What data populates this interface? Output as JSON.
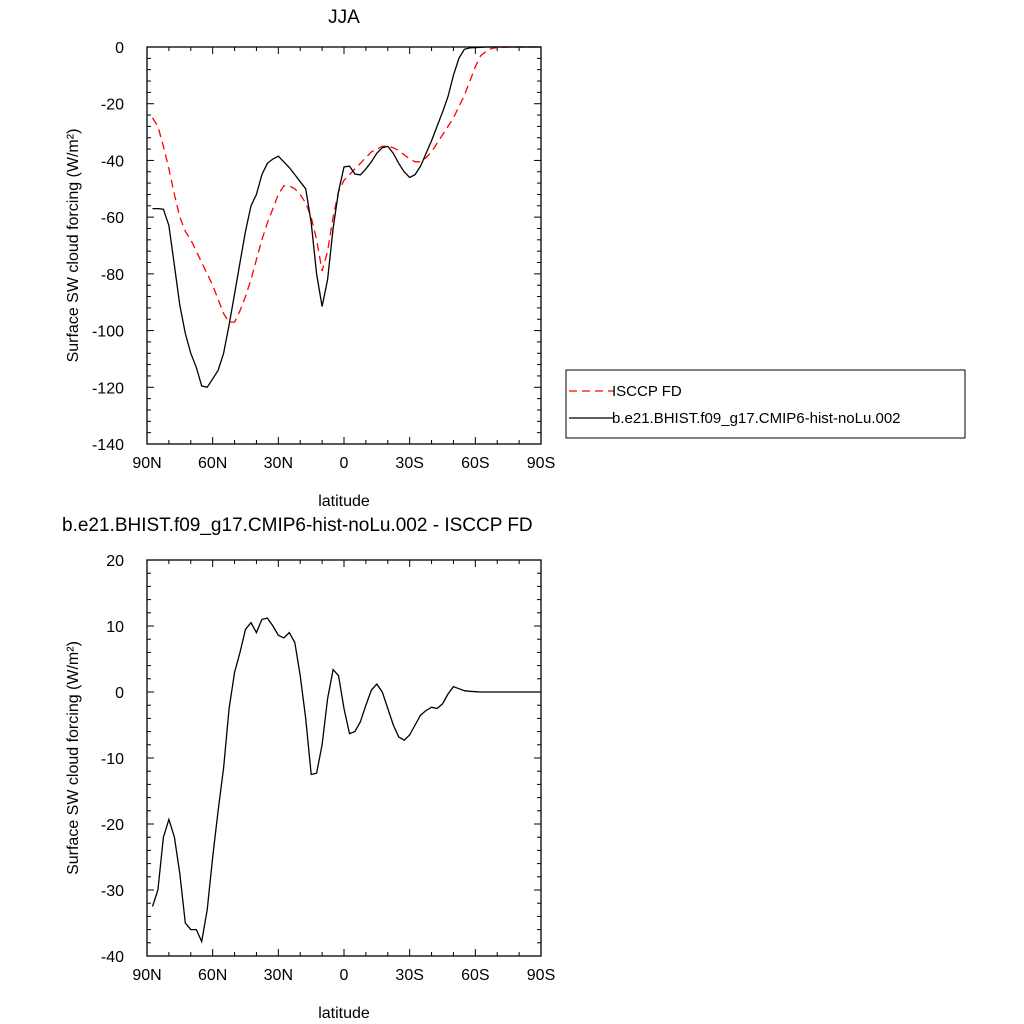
{
  "chart_data": [
    {
      "type": "line",
      "title": "JJA",
      "xlabel": "latitude",
      "ylabel": "Surface SW cloud forcing (W/m²)",
      "x_ticks": [
        {
          "value": -90,
          "label": "90N"
        },
        {
          "value": -60,
          "label": "60N"
        },
        {
          "value": -30,
          "label": "30N"
        },
        {
          "value": 0,
          "label": "0"
        },
        {
          "value": 30,
          "label": "30S"
        },
        {
          "value": 60,
          "label": "60S"
        },
        {
          "value": 90,
          "label": "90S"
        }
      ],
      "xlim": [
        -90,
        90
      ],
      "ylim": [
        -140,
        0
      ],
      "y_ticks": [
        0,
        -20,
        -40,
        -60,
        -80,
        -100,
        -120,
        -140
      ],
      "legend": {
        "position": "right",
        "entries": [
          "ISCCP FD",
          "b.e21.BHIST.f09_g17.CMIP6-hist-noLu.002"
        ]
      },
      "series": [
        {
          "name": "ISCCP FD",
          "color": "#ff0000",
          "dash": true,
          "x": [
            -87.5,
            -85,
            -82.5,
            -80,
            -77.5,
            -75,
            -72.5,
            -70,
            -67.5,
            -65,
            -62.5,
            -60,
            -57.5,
            -55,
            -52.5,
            -50,
            -47.5,
            -45,
            -42.5,
            -40,
            -37.5,
            -35,
            -32.5,
            -30,
            -27.5,
            -25,
            -22.5,
            -20,
            -17.5,
            -15,
            -12.5,
            -10,
            -7.5,
            -5,
            -2.5,
            0,
            2.5,
            5,
            7.5,
            10,
            12.5,
            15,
            17.5,
            20,
            22.5,
            25,
            27.5,
            30,
            32.5,
            35,
            37.5,
            40,
            42.5,
            45,
            47.5,
            50,
            52.5,
            55,
            57.5,
            60,
            62.5,
            65,
            67.5,
            70,
            72.5,
            75,
            77.5,
            80,
            82.5,
            85,
            87.5,
            90
          ],
          "y": [
            -25,
            -28,
            -35,
            -43,
            -52,
            -60,
            -65,
            -68,
            -72,
            -76,
            -80,
            -84,
            -89,
            -94,
            -97,
            -97,
            -93,
            -88,
            -82,
            -75,
            -68,
            -62,
            -57,
            -52,
            -49,
            -49,
            -50,
            -52,
            -55,
            -60,
            -68,
            -79,
            -72,
            -60,
            -51,
            -47,
            -45,
            -43,
            -41,
            -39,
            -37,
            -36,
            -35,
            -35,
            -35.5,
            -36.5,
            -38,
            -39.5,
            -40.5,
            -40.5,
            -39,
            -37,
            -34,
            -31,
            -28,
            -25,
            -21,
            -17,
            -12,
            -7,
            -3,
            -1.5,
            -0.5,
            -0.2,
            -0.1,
            0,
            0,
            0,
            0,
            0,
            0,
            0
          ]
        },
        {
          "name": "b.e21.BHIST.f09_g17.CMIP6-hist-noLu.002",
          "color": "#000000",
          "dash": false,
          "x": [
            -87.5,
            -85,
            -82.5,
            -80,
            -77.5,
            -75,
            -72.5,
            -70,
            -67.5,
            -65,
            -62.5,
            -60,
            -57.5,
            -55,
            -52.5,
            -50,
            -47.5,
            -45,
            -42.5,
            -40,
            -37.5,
            -35,
            -32.5,
            -30,
            -27.5,
            -25,
            -22.5,
            -20,
            -17.5,
            -15,
            -12.5,
            -10,
            -7.5,
            -5,
            -2.5,
            0,
            2.5,
            5,
            7.5,
            10,
            12.5,
            15,
            17.5,
            20,
            22.5,
            25,
            27.5,
            30,
            32.5,
            35,
            37.5,
            40,
            42.5,
            45,
            47.5,
            50,
            52.5,
            55,
            57.5,
            60,
            62.5,
            65,
            67.5,
            70,
            72.5,
            75,
            77.5,
            80,
            82.5,
            85,
            87.5,
            90
          ],
          "y": [
            -57,
            -57,
            -57.2,
            -63,
            -77,
            -91,
            -101,
            -108,
            -113,
            -119.5,
            -120,
            -117,
            -114,
            -108,
            -98,
            -87,
            -76,
            -65,
            -56,
            -52,
            -45,
            -41,
            -39.5,
            -38.5,
            -40.5,
            -42.5,
            -45,
            -47.5,
            -50,
            -62,
            -80,
            -91.5,
            -82,
            -64,
            -51,
            -42.3,
            -42,
            -44.8,
            -45.1,
            -43,
            -40.5,
            -37.5,
            -35.5,
            -35,
            -37.5,
            -41,
            -44,
            -46,
            -45,
            -42,
            -37.5,
            -33,
            -28,
            -23,
            -17.5,
            -10,
            -4,
            -0.8,
            -0.3,
            -0.2,
            -0.1,
            0,
            0,
            0,
            0,
            0,
            0,
            0,
            0,
            0,
            0,
            0
          ]
        }
      ]
    },
    {
      "type": "line",
      "title": "b.e21.BHIST.f09_g17.CMIP6-hist-noLu.002 - ISCCP FD",
      "xlabel": "latitude",
      "ylabel": "Surface SW cloud forcing (W/m²)",
      "x_ticks": [
        {
          "value": -90,
          "label": "90N"
        },
        {
          "value": -60,
          "label": "60N"
        },
        {
          "value": -30,
          "label": "30N"
        },
        {
          "value": 0,
          "label": "0"
        },
        {
          "value": 30,
          "label": "30S"
        },
        {
          "value": 60,
          "label": "60S"
        },
        {
          "value": 90,
          "label": "90S"
        }
      ],
      "xlim": [
        -90,
        90
      ],
      "ylim": [
        -40,
        20
      ],
      "y_ticks": [
        20,
        10,
        0,
        -10,
        -20,
        -30,
        -40
      ],
      "series": [
        {
          "color": "#000000",
          "dash": false,
          "x": [
            -87.5,
            -85,
            -82.5,
            -80,
            -77.5,
            -75,
            -72.5,
            -70,
            -67.5,
            -65,
            -62.5,
            -60,
            -57.5,
            -55,
            -52.5,
            -50,
            -47.5,
            -45,
            -42.5,
            -40,
            -37.5,
            -35,
            -32.5,
            -30,
            -27.5,
            -25,
            -22.5,
            -20,
            -17.5,
            -15,
            -12.5,
            -10,
            -7.5,
            -5,
            -2.5,
            0,
            2.5,
            5,
            7.5,
            10,
            12.5,
            15,
            17.5,
            20,
            22.5,
            25,
            27.5,
            30,
            32.5,
            35,
            37.5,
            40,
            42.5,
            45,
            47.5,
            50,
            52.5,
            55,
            57.5,
            60,
            62.5,
            65,
            67.5,
            70,
            72.5,
            75,
            77.5,
            80,
            82.5,
            85,
            87.5,
            90
          ],
          "y": [
            -32.5,
            -30,
            -22,
            -19.3,
            -22,
            -27.5,
            -35,
            -36,
            -36,
            -37.8,
            -33,
            -25,
            -18,
            -11.5,
            -2.5,
            3,
            6,
            9.5,
            10.5,
            9,
            11,
            11.2,
            10,
            8.6,
            8.2,
            9,
            7.5,
            2.5,
            -4,
            -12.5,
            -12.3,
            -8,
            -1,
            3.4,
            2.5,
            -2.5,
            -6.3,
            -6,
            -4.5,
            -2,
            0.3,
            1.2,
            0,
            -2.5,
            -5,
            -6.8,
            -7.3,
            -6.5,
            -5,
            -3.5,
            -2.8,
            -2.3,
            -2.5,
            -1.8,
            -0.3,
            0.8,
            0.5,
            0.2,
            0.1,
            0.05,
            0,
            0,
            0,
            0,
            0,
            0,
            0,
            0,
            0,
            0,
            0,
            0
          ]
        }
      ]
    }
  ]
}
